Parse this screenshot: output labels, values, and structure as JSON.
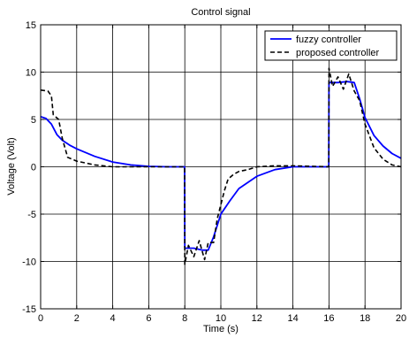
{
  "chart_data": {
    "type": "line",
    "title": "Control signal",
    "xlabel": "Time (s)",
    "ylabel": "Voltage (Volt)",
    "xlim": [
      0,
      20
    ],
    "ylim": [
      -15,
      15
    ],
    "xticks": [
      0,
      2,
      4,
      6,
      8,
      10,
      12,
      14,
      16,
      18,
      20
    ],
    "yticks": [
      -15,
      -10,
      -5,
      0,
      5,
      10,
      15
    ],
    "grid": true,
    "legend_position": "top-right",
    "series": [
      {
        "name": "fuzzy controller",
        "color": "#0000ff",
        "style": "solid",
        "points": [
          [
            0,
            5.3
          ],
          [
            0.3,
            5.1
          ],
          [
            0.6,
            4.5
          ],
          [
            0.9,
            3.4
          ],
          [
            1.2,
            2.8
          ],
          [
            1.6,
            2.3
          ],
          [
            2,
            1.9
          ],
          [
            3,
            1.1
          ],
          [
            4,
            0.5
          ],
          [
            5,
            0.2
          ],
          [
            6,
            0.05
          ],
          [
            7,
            0
          ],
          [
            7.99,
            0
          ],
          [
            8.0,
            -8.6
          ],
          [
            8.5,
            -8.6
          ],
          [
            9,
            -8.8
          ],
          [
            9.3,
            -8.8
          ],
          [
            9.6,
            -7.4
          ],
          [
            10,
            -5.0
          ],
          [
            10.5,
            -3.6
          ],
          [
            11,
            -2.3
          ],
          [
            12,
            -1.0
          ],
          [
            13,
            -0.3
          ],
          [
            14,
            0
          ],
          [
            15.99,
            0
          ],
          [
            16.0,
            8.9
          ],
          [
            16.5,
            8.9
          ],
          [
            17,
            9.0
          ],
          [
            17.4,
            8.9
          ],
          [
            17.7,
            7.2
          ],
          [
            18,
            5.2
          ],
          [
            18.5,
            3.3
          ],
          [
            19,
            2.2
          ],
          [
            19.5,
            1.4
          ],
          [
            20,
            0.9
          ]
        ]
      },
      {
        "name": "proposed controller",
        "color": "#000000",
        "style": "dashed",
        "points": [
          [
            0,
            8.1
          ],
          [
            0.4,
            8.0
          ],
          [
            0.6,
            7.5
          ],
          [
            0.7,
            5.5
          ],
          [
            1.0,
            5.0
          ],
          [
            1.2,
            3.0
          ],
          [
            1.5,
            1.0
          ],
          [
            2,
            0.6
          ],
          [
            3,
            0.2
          ],
          [
            4,
            0
          ],
          [
            7.99,
            0
          ],
          [
            8.0,
            -10.3
          ],
          [
            8.2,
            -8.3
          ],
          [
            8.5,
            -9.5
          ],
          [
            8.8,
            -7.8
          ],
          [
            9.1,
            -9.8
          ],
          [
            9.3,
            -8.0
          ],
          [
            9.6,
            -8.0
          ],
          [
            9.8,
            -5.5
          ],
          [
            10.0,
            -4.0
          ],
          [
            10.2,
            -2.5
          ],
          [
            10.4,
            -1.3
          ],
          [
            10.7,
            -0.8
          ],
          [
            11,
            -0.5
          ],
          [
            11.5,
            -0.3
          ],
          [
            12,
            0
          ],
          [
            13,
            0.1
          ],
          [
            14,
            0.1
          ],
          [
            15.99,
            0
          ],
          [
            16.0,
            10.4
          ],
          [
            16.2,
            8.5
          ],
          [
            16.5,
            9.5
          ],
          [
            16.8,
            8.2
          ],
          [
            17.1,
            9.8
          ],
          [
            17.4,
            8.0
          ],
          [
            17.7,
            7.0
          ],
          [
            18,
            4.5
          ],
          [
            18.5,
            2.0
          ],
          [
            19,
            0.8
          ],
          [
            19.5,
            0.2
          ],
          [
            20,
            0
          ]
        ]
      }
    ]
  }
}
